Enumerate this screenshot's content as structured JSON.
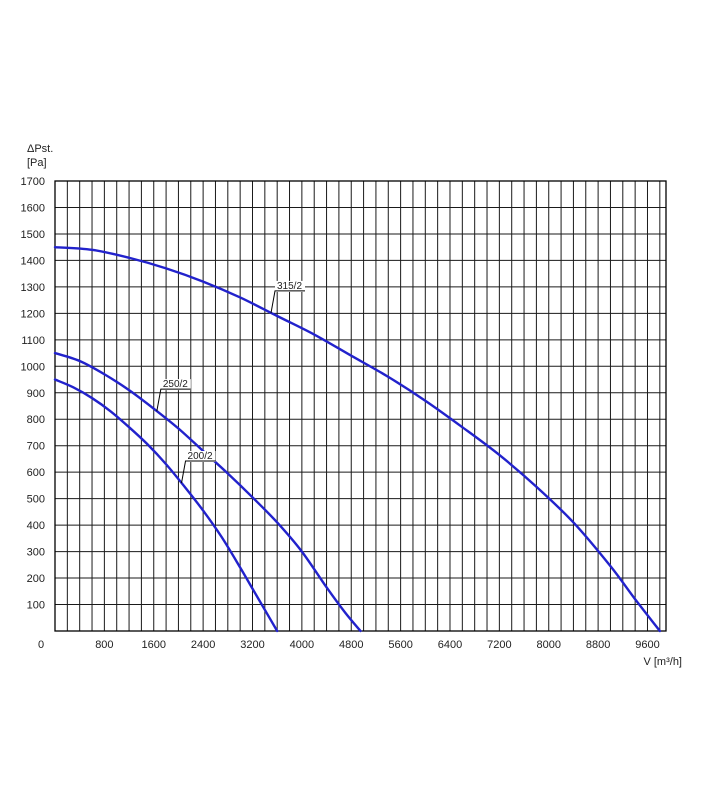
{
  "chart_data": {
    "type": "line",
    "ylabel_symbol": "ΔPst.",
    "ylabel_unit": "[Pa]",
    "xlabel": "V [m³/h]",
    "xlim": [
      0,
      9900
    ],
    "ylim": [
      0,
      1700
    ],
    "x_ticks": [
      0,
      800,
      1600,
      2400,
      3200,
      4000,
      4800,
      5600,
      6400,
      7200,
      8000,
      8800,
      9600
    ],
    "y_ticks": [
      100,
      200,
      300,
      400,
      500,
      600,
      700,
      800,
      900,
      1000,
      1100,
      1200,
      1300,
      1400,
      1500,
      1600,
      1700
    ],
    "grid": true,
    "x_minor_step": 200,
    "y_minor_step": 100,
    "line_color": "#2222cc",
    "series": [
      {
        "name": "315/2",
        "x": [
          0,
          600,
          1200,
          1800,
          2400,
          3000,
          3600,
          4200,
          4800,
          5400,
          6000,
          6600,
          7200,
          7800,
          8400,
          9000,
          9400,
          9800
        ],
        "y": [
          1450,
          1440,
          1410,
          1370,
          1320,
          1260,
          1190,
          1120,
          1040,
          960,
          870,
          770,
          665,
          545,
          410,
          245,
          120,
          0
        ]
      },
      {
        "name": "250/2",
        "x": [
          0,
          400,
          800,
          1200,
          1600,
          2000,
          2400,
          2800,
          3200,
          3600,
          4000,
          4400,
          4700,
          4950
        ],
        "y": [
          1050,
          1020,
          970,
          910,
          840,
          765,
          680,
          595,
          505,
          410,
          300,
          165,
          70,
          0
        ]
      },
      {
        "name": "200/2",
        "x": [
          0,
          300,
          600,
          900,
          1200,
          1500,
          1800,
          2100,
          2400,
          2700,
          3000,
          3200,
          3400,
          3600
        ],
        "y": [
          950,
          920,
          880,
          830,
          770,
          705,
          630,
          545,
          455,
          355,
          240,
          160,
          80,
          0
        ]
      }
    ],
    "annotations": [
      {
        "series": "315/2",
        "text": "315/2",
        "at_x": 3500
      },
      {
        "series": "250/2",
        "text": "250/2",
        "at_x": 1650
      },
      {
        "series": "200/2",
        "text": "200/2",
        "at_x": 2050
      }
    ]
  }
}
